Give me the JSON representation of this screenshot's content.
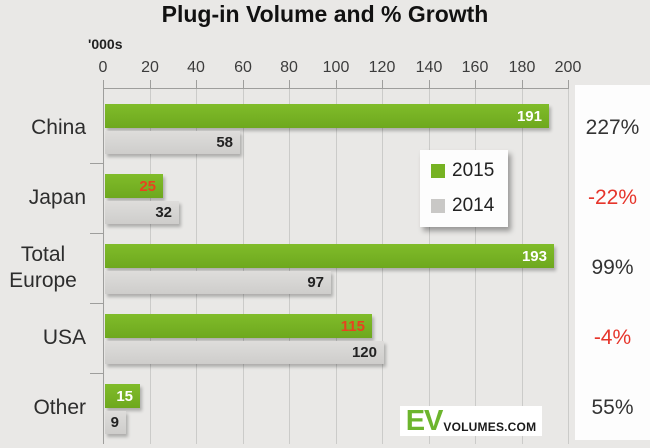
{
  "title": "Plug-in Volume and % Growth",
  "units_label": "'000s",
  "colors": {
    "green": "#76b222",
    "gray_bar": "#d5d4d2",
    "red_growth": "#e6352b",
    "bar_label_red": "#e8431f",
    "bar_label_white": "#ffffff",
    "bar_label_dark": "#222222",
    "background": "#e9e8e6",
    "panel_bg": "#fdfdfd"
  },
  "legend": {
    "items": [
      {
        "label": "2015",
        "swatch": "green-swatch"
      },
      {
        "label": "2014",
        "swatch": "gray-swatch"
      }
    ]
  },
  "logo": {
    "ev": "EV",
    "rest": "VOLUMES.COM"
  },
  "chart_data": {
    "type": "bar",
    "orientation": "horizontal",
    "title": "Plug-in Volume and % Growth",
    "xlabel": "'000s",
    "ylabel": "",
    "xlim": [
      0,
      200
    ],
    "axis_ticks": [
      0,
      20,
      40,
      60,
      80,
      100,
      120,
      140,
      160,
      180,
      200
    ],
    "grid": "vertical",
    "legend_position": "center",
    "categories": [
      "China",
      "Japan",
      "Total Europe",
      "USA",
      "Other"
    ],
    "category_display_lines": [
      [
        "China"
      ],
      [
        "Japan"
      ],
      [
        "Total",
        "Europe"
      ],
      [
        "USA"
      ],
      [
        "Other"
      ]
    ],
    "series": [
      {
        "name": "2015",
        "values": [
          191,
          25,
          193,
          115,
          15
        ]
      },
      {
        "name": "2014",
        "values": [
          58,
          32,
          97,
          120,
          9
        ]
      }
    ],
    "growth": [
      "227%",
      "-22%",
      "99%",
      "-4%",
      "55%"
    ]
  }
}
